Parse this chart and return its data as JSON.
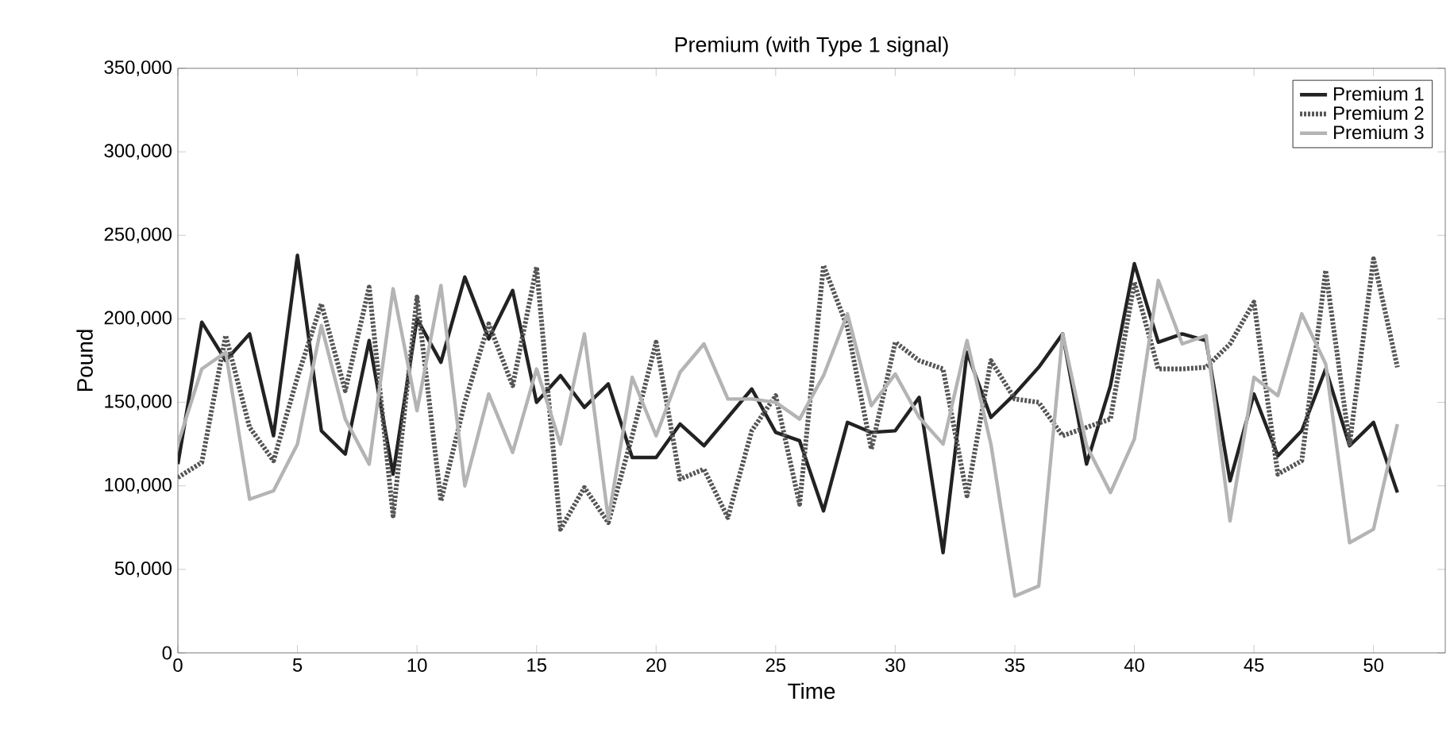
{
  "chart_data": {
    "type": "line",
    "title": "Premium (with Type 1 signal)",
    "xlabel": "Time",
    "ylabel": "Pound",
    "x": [
      0,
      1,
      2,
      3,
      4,
      5,
      6,
      7,
      8,
      9,
      10,
      11,
      12,
      13,
      14,
      15,
      16,
      17,
      18,
      19,
      20,
      21,
      22,
      23,
      24,
      25,
      26,
      27,
      28,
      29,
      30,
      31,
      32,
      33,
      34,
      35,
      36,
      37,
      38,
      39,
      40,
      41,
      42,
      43,
      44,
      45,
      46,
      47,
      48,
      49,
      50,
      51
    ],
    "series": [
      {
        "name": "Premium 1",
        "color": "#222222",
        "line_style": "solid",
        "values": [
          113000,
          198000,
          175000,
          191000,
          130000,
          238000,
          133000,
          119000,
          187000,
          107000,
          200000,
          174000,
          225000,
          188000,
          217000,
          150000,
          166000,
          147000,
          161000,
          117000,
          117000,
          137000,
          124000,
          141000,
          158000,
          132000,
          127000,
          85000,
          138000,
          132000,
          133000,
          153000,
          60000,
          180000,
          141000,
          155000,
          171000,
          191000,
          113000,
          160000,
          233000,
          186000,
          191000,
          187000,
          103000,
          155000,
          118000,
          133000,
          170000,
          124000,
          138000,
          96000
        ]
      },
      {
        "name": "Premium 2",
        "color": "#555555",
        "line_style": "dotted",
        "values": [
          105000,
          114000,
          190000,
          135000,
          115000,
          165000,
          209000,
          157000,
          219000,
          82000,
          213000,
          91000,
          150000,
          197000,
          160000,
          231000,
          74000,
          99000,
          78000,
          130000,
          186000,
          104000,
          110000,
          81000,
          133000,
          154000,
          89000,
          232000,
          195000,
          122000,
          186000,
          175000,
          170000,
          94000,
          175000,
          152000,
          150000,
          130000,
          135000,
          140000,
          222000,
          170000,
          170000,
          171000,
          185000,
          210000,
          107000,
          115000,
          229000,
          125000,
          236000,
          171000
        ]
      },
      {
        "name": "Premium 3",
        "color": "#b4b4b4",
        "line_style": "solid",
        "values": [
          125000,
          170000,
          180000,
          92000,
          97000,
          125000,
          196000,
          140000,
          113000,
          218000,
          145000,
          220000,
          100000,
          155000,
          120000,
          170000,
          125000,
          191000,
          80000,
          165000,
          130000,
          168000,
          185000,
          152000,
          152000,
          150000,
          140000,
          166000,
          203000,
          148000,
          167000,
          141000,
          125000,
          187000,
          125000,
          34000,
          40000,
          191000,
          124000,
          96000,
          128000,
          223000,
          185000,
          190000,
          79000,
          165000,
          154000,
          203000,
          173000,
          66000,
          74000,
          137000
        ]
      }
    ],
    "xlim": [
      0,
      53
    ],
    "ylim": [
      0,
      350000
    ],
    "xticks": [
      0,
      5,
      10,
      15,
      20,
      25,
      30,
      35,
      40,
      45,
      50
    ],
    "yticks": [
      0,
      {
        "value": 50000,
        "label": "50,000"
      },
      {
        "value": 100000,
        "label": "100,000"
      },
      {
        "value": 150000,
        "label": "150,000"
      },
      {
        "value": 200000,
        "label": "200,000"
      },
      {
        "value": 250000,
        "label": "250,000"
      },
      {
        "value": 300000,
        "label": "300,000"
      },
      {
        "value": 350000,
        "label": "350,000"
      }
    ],
    "legend": "top right"
  }
}
